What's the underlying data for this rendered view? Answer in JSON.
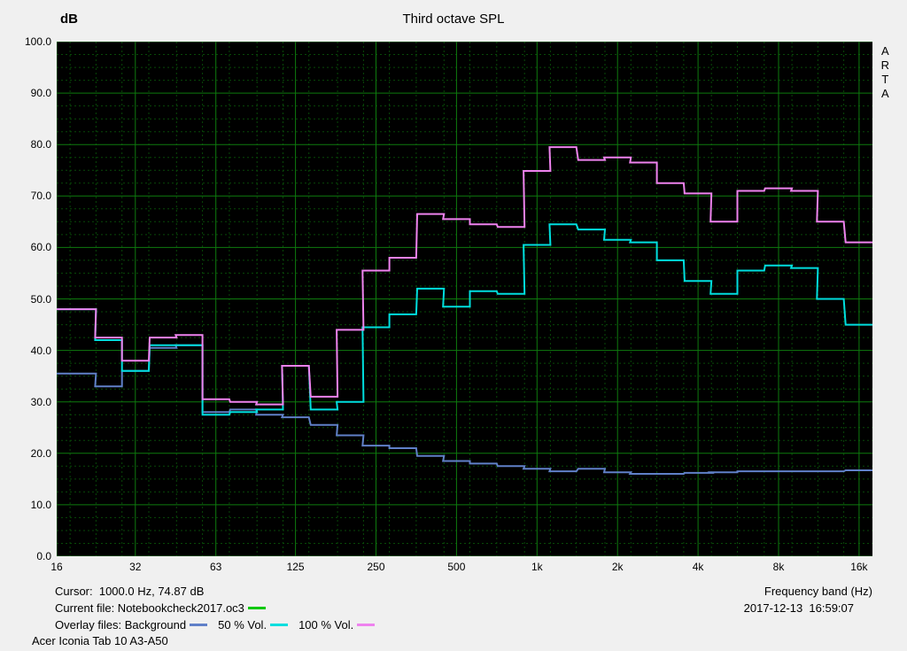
{
  "header": {
    "y_unit": "dB",
    "title": "Third octave SPL",
    "brand": "ARTA"
  },
  "footer": {
    "cursor": "Cursor:  1000.0 Hz, 74.87 dB",
    "current_file": "Current file: Notebookcheck2017.oc3",
    "overlay_label": "Overlay files: Background",
    "overlay_50": "50 % Vol.",
    "overlay_100": "100 % Vol.",
    "device": "Acer Iconia Tab 10 A3-A50",
    "x_axis_label": "Frequency band (Hz)",
    "datetime": "2017-12-13  16:59:07"
  },
  "colors": {
    "page_bg": "#f0f0f0",
    "plot_bg": "#000000",
    "grid_major": "#0e7a0e",
    "grid_minor": "#084808",
    "current_file_line": "#00c800",
    "background_line": "#6080c8",
    "vol50_line": "#00dede",
    "vol100_line": "#ee82ee"
  },
  "chart_data": {
    "type": "line",
    "subtype": "third-octave-step",
    "title": "Third octave SPL",
    "xlabel": "Frequency band (Hz)",
    "ylabel": "dB",
    "x_scale": "log",
    "ylim": [
      0,
      100
    ],
    "grid": true,
    "legend_position": "bottom-left",
    "cursor": {
      "freq_hz": 1000.0,
      "value_db": 74.87
    },
    "yticks": [
      {
        "v": 100,
        "label": "100.0"
      },
      {
        "v": 90,
        "label": "90.0"
      },
      {
        "v": 80,
        "label": "80.0"
      },
      {
        "v": 70,
        "label": "70.0"
      },
      {
        "v": 60,
        "label": "60.0"
      },
      {
        "v": 50,
        "label": "50.0"
      },
      {
        "v": 40,
        "label": "40.0"
      },
      {
        "v": 30,
        "label": "30.0"
      },
      {
        "v": 20,
        "label": "20.0"
      },
      {
        "v": 10,
        "label": "10.0"
      },
      {
        "v": 0,
        "label": "0.0"
      }
    ],
    "xticks": [
      {
        "f": 16,
        "label": "16"
      },
      {
        "f": 31.5,
        "label": "32"
      },
      {
        "f": 63,
        "label": "63"
      },
      {
        "f": 125,
        "label": "125"
      },
      {
        "f": 250,
        "label": "250"
      },
      {
        "f": 500,
        "label": "500"
      },
      {
        "f": 1000,
        "label": "1k"
      },
      {
        "f": 2000,
        "label": "2k"
      },
      {
        "f": 4000,
        "label": "4k"
      },
      {
        "f": 8000,
        "label": "8k"
      },
      {
        "f": 16000,
        "label": "16k"
      }
    ],
    "bands": [
      16,
      20,
      25,
      31.5,
      40,
      50,
      63,
      80,
      100,
      125,
      160,
      200,
      250,
      315,
      400,
      500,
      630,
      800,
      1000,
      1250,
      1600,
      2000,
      2500,
      3150,
      4000,
      5000,
      6300,
      8000,
      10000,
      12500,
      16000
    ],
    "series": [
      {
        "key": "background",
        "name": "Background",
        "color": "#6080c8",
        "values": [
          35.5,
          35.5,
          33,
          36,
          40.5,
          41,
          28,
          28.5,
          27.5,
          27,
          25.5,
          23.5,
          21.5,
          21,
          19.5,
          18.5,
          18,
          17.5,
          17,
          16.5,
          17,
          16.3,
          16,
          16,
          16.2,
          16.3,
          16.5,
          16.5,
          16.5,
          16.5,
          16.7
        ]
      },
      {
        "key": "vol50",
        "name": "50 % Vol.",
        "color": "#00dede",
        "values": [
          48,
          48,
          42,
          36,
          41,
          41,
          27.5,
          28,
          28.5,
          37,
          28.5,
          30,
          44.5,
          47,
          52,
          48.5,
          51.5,
          51,
          60.5,
          64.5,
          63.5,
          61.5,
          61,
          57.5,
          53.5,
          51,
          55.5,
          56.5,
          56,
          50,
          45
        ]
      },
      {
        "key": "vol100",
        "name": "100 % Vol.",
        "color": "#ee82ee",
        "values": [
          48,
          48,
          42.5,
          38,
          42.5,
          43,
          30.5,
          30,
          29.5,
          37,
          31,
          44,
          55.5,
          58,
          66.5,
          65.5,
          64.5,
          64,
          74.87,
          79.5,
          77,
          77.5,
          76.5,
          72.5,
          70.5,
          65,
          71,
          71.5,
          71,
          65,
          61
        ]
      }
    ]
  }
}
